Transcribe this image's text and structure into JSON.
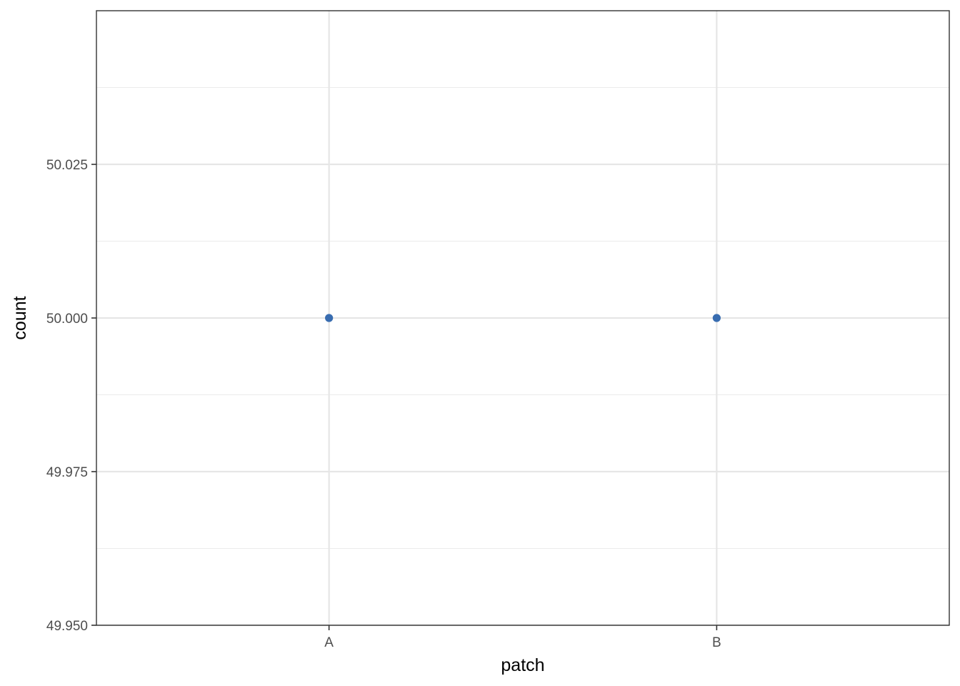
{
  "chart_data": {
    "type": "scatter",
    "title": "",
    "xlabel": "patch",
    "ylabel": "count",
    "categories": [
      "A",
      "B"
    ],
    "points": [
      {
        "x": "A",
        "y": 50.0
      },
      {
        "x": "B",
        "y": 50.0
      }
    ],
    "ylim": [
      49.95,
      50.05
    ],
    "y_ticks": [
      49.95,
      49.975,
      50.0,
      50.025
    ],
    "y_tick_labels": [
      "49.950",
      "49.975",
      "50.000",
      "50.025"
    ],
    "y_minor_ticks": [
      49.9625,
      49.9875,
      50.0125,
      50.0375
    ],
    "grid": true,
    "legend": "none",
    "point_color": "#386cb0"
  }
}
